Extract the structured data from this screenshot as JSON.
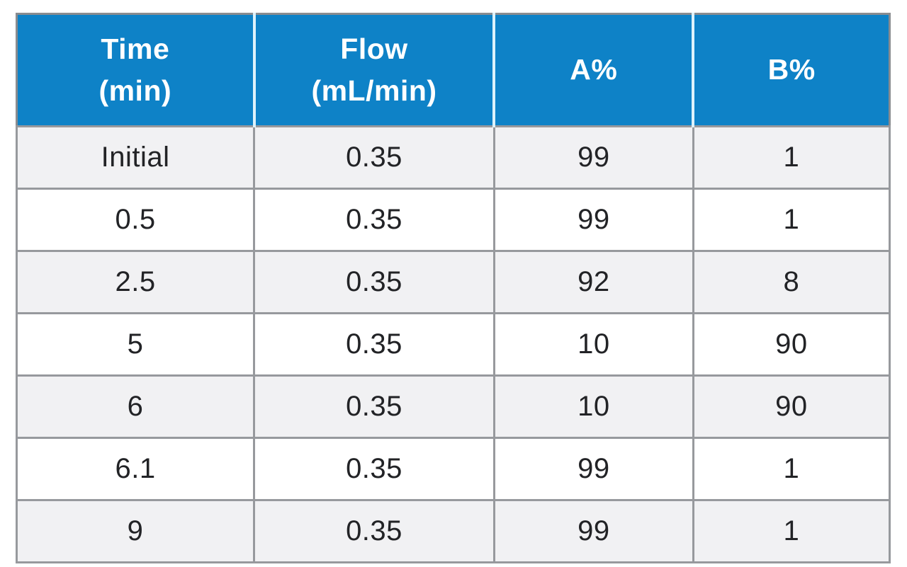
{
  "table": {
    "columns": [
      {
        "label": "Time\n(min)"
      },
      {
        "label": "Flow\n(mL/min)"
      },
      {
        "label": "A%"
      },
      {
        "label": "B%"
      }
    ]
  },
  "chart_data": {
    "type": "table",
    "columns": [
      "Time (min)",
      "Flow (mL/min)",
      "A%",
      "B%"
    ],
    "rows": [
      [
        "Initial",
        "0.35",
        "99",
        "1"
      ],
      [
        "0.5",
        "0.35",
        "99",
        "1"
      ],
      [
        "2.5",
        "0.35",
        "92",
        "8"
      ],
      [
        "5",
        "0.35",
        "10",
        "90"
      ],
      [
        "6",
        "0.35",
        "10",
        "90"
      ],
      [
        "6.1",
        "0.35",
        "99",
        "1"
      ],
      [
        "9",
        "0.35",
        "99",
        "1"
      ]
    ]
  },
  "colors": {
    "header_background": "#0e82c7",
    "header_text": "#ffffff",
    "header_divider": "#ddf2fb",
    "row_alt_background": "#f1f1f3",
    "row_background": "#ffffff",
    "border": "#97999d",
    "outer_border": "#8a8c90",
    "body_text": "#222326"
  }
}
